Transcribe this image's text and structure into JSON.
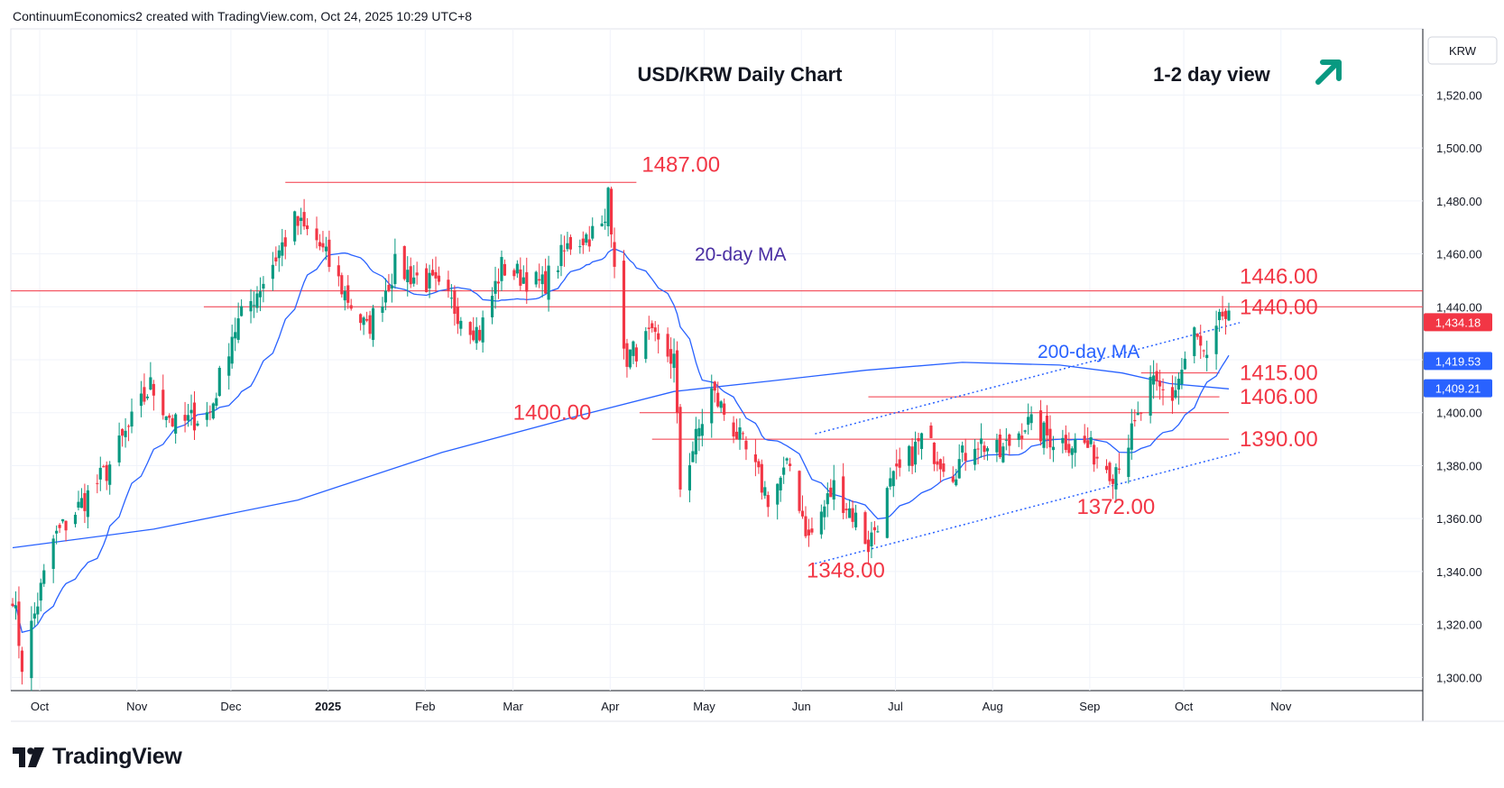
{
  "header": {
    "text": "ContinuumEconomics2 created with TradingView.com, Oct 24, 2025 10:29 UTC+8"
  },
  "footer": {
    "brand": "TradingView"
  },
  "colors": {
    "up": "#089981",
    "down": "#f23645",
    "ma20": "#2962ff",
    "ma200": "#2962ff",
    "level": "#f23645",
    "arrow": "#089981",
    "title": "#131722",
    "annot_ma20": "#4a2fa3",
    "annot_ma200": "#2962ff"
  },
  "chart_data": {
    "type": "candlestick",
    "title": "USD/KRW Daily Chart",
    "subtitle": "1-2 day view",
    "view_icon": "up-right-arrow-icon",
    "currency": "KRW",
    "ylim": [
      1295,
      1545
    ],
    "y_ticks": [
      1300,
      1320,
      1340,
      1360,
      1380,
      1400,
      1420,
      1440,
      1460,
      1480,
      1500,
      1520
    ],
    "y_tick_labels": [
      "1,300.00",
      "1,320.00",
      "1,340.00",
      "1,360.00",
      "1,380.00",
      "1,400.00",
      "1,420.00",
      "1,440.00",
      "1,460.00",
      "1,480.00",
      "1,500.00",
      "1,520.00"
    ],
    "x_ticks": [
      "Oct",
      "Nov",
      "Dec",
      "2025",
      "Feb",
      "Mar",
      "Apr",
      "May",
      "Jun",
      "Jul",
      "Aug",
      "Sep",
      "Oct",
      "Nov"
    ],
    "last_price": "1,434.18",
    "ma_values": {
      "ma20": "1,419.53",
      "ma200": "1,409.21"
    },
    "levels": [
      {
        "value": 1487,
        "label": "1487.00"
      },
      {
        "value": 1446,
        "label": "1446.00"
      },
      {
        "value": 1440,
        "label": "1440.00"
      },
      {
        "value": 1415,
        "label": "1415.00"
      },
      {
        "value": 1406,
        "label": "1406.00"
      },
      {
        "value": 1400,
        "label": "1400.00"
      },
      {
        "value": 1390,
        "label": "1390.00"
      },
      {
        "value": 1372,
        "label": "1372.00"
      },
      {
        "value": 1348,
        "label": "1348.00"
      }
    ],
    "annotations": {
      "ma20": "20-day MA",
      "ma200": "200-day MA"
    },
    "ohlc_key_points": [
      {
        "date": "2024-10-01",
        "close": 1332
      },
      {
        "date": "2024-10-04",
        "close": 1305
      },
      {
        "date": "2024-11-14",
        "close": 1410
      },
      {
        "date": "2024-12-30",
        "close": 1487
      },
      {
        "date": "2025-01-22",
        "close": 1431
      },
      {
        "date": "2025-02-27",
        "close": 1430
      },
      {
        "date": "2025-04-09",
        "close": 1487
      },
      {
        "date": "2025-04-14",
        "close": 1420
      },
      {
        "date": "2025-05-02",
        "close": 1364
      },
      {
        "date": "2025-06-12",
        "close": 1350
      },
      {
        "date": "2025-07-01",
        "close": 1348
      },
      {
        "date": "2025-07-28",
        "close": 1390
      },
      {
        "date": "2025-08-20",
        "close": 1396
      },
      {
        "date": "2025-09-17",
        "close": 1372
      },
      {
        "date": "2025-10-13",
        "close": 1430
      },
      {
        "date": "2025-10-17",
        "close": 1418
      },
      {
        "date": "2025-10-22",
        "close": 1440
      },
      {
        "date": "2025-10-24",
        "close": 1434
      }
    ]
  }
}
